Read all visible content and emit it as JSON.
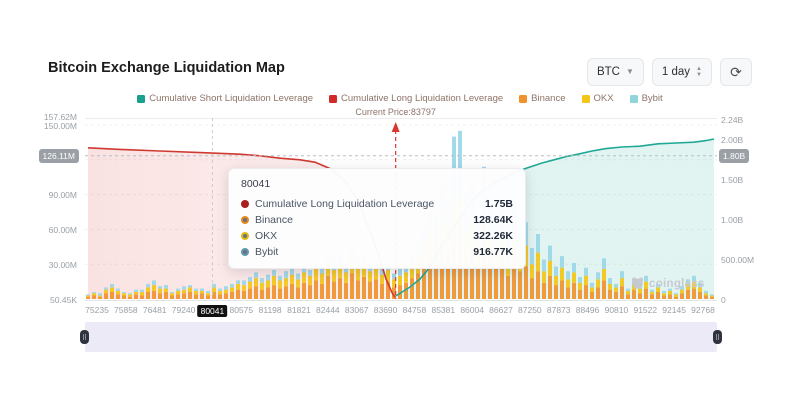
{
  "header": {
    "title": "Bitcoin Exchange Liquidation Map"
  },
  "controls": {
    "symbol_select": {
      "value": "BTC"
    },
    "period_select": {
      "value": "1 day"
    },
    "refresh_icon": "refresh-icon"
  },
  "legend": {
    "items": [
      {
        "label": "Cumulative Short Liquidation Leverage",
        "color": "#17a08e"
      },
      {
        "label": "Cumulative Long Liquidation Leverage",
        "color": "#d02a2a"
      },
      {
        "label": "Binance",
        "color": "#f0922e"
      },
      {
        "label": "OKX",
        "color": "#f3c517"
      },
      {
        "label": "Bybit",
        "color": "#8fd6dc"
      }
    ]
  },
  "current_price": {
    "label": "Current Price:83797",
    "value": 83797,
    "tick_pos": 10.35,
    "line_color": "#d4382e"
  },
  "chart_data": {
    "type": "mixed: stacked bar + cumulative area lines",
    "x_axis": {
      "tick_labels": [
        "75235",
        "75858",
        "76481",
        "79240",
        "80041",
        "80575",
        "81198",
        "81821",
        "82444",
        "83067",
        "83690",
        "84758",
        "85381",
        "86004",
        "86627",
        "87250",
        "87873",
        "88496",
        "90810",
        "91522",
        "92145",
        "92768"
      ],
      "highlighted_tick_index": 4,
      "highlighted_tick": "80041"
    },
    "left_axis": {
      "unit": "M",
      "ticks": [
        {
          "label": "157.62M",
          "v": 157.62,
          "grid": false
        },
        {
          "label": "150.00M",
          "v": 150,
          "grid": true
        },
        {
          "label": "120.00M",
          "v": 120,
          "grid": true
        },
        {
          "label": "90.00M",
          "v": 90,
          "grid": true
        },
        {
          "label": "60.00M",
          "v": 60,
          "grid": true
        },
        {
          "label": "30.00M",
          "v": 30,
          "grid": true
        },
        {
          "label": "50.45K",
          "v": 0,
          "grid": false
        }
      ],
      "pointer_badge": "126.11M"
    },
    "right_axis": {
      "unit": "B",
      "ticks": [
        {
          "label": "2.24B",
          "v": 2.24
        },
        {
          "label": "2.00B",
          "v": 2.0
        },
        {
          "label": "1.50B",
          "v": 1.5
        },
        {
          "label": "1.00B",
          "v": 1.0
        },
        {
          "label": "500.00M",
          "v": 0.5
        },
        {
          "label": "0",
          "v": 0
        }
      ],
      "pointer_badge": "1.80B",
      "pointer_value_b": 1.79
    },
    "series": {
      "cumulative_long": {
        "name": "Cumulative Long Liquidation Leverage",
        "color": "#cf3a30",
        "unit": "B",
        "area_fill": [
          "rgba(226,74,74,0.16)",
          "rgba(226,74,74,0.08)"
        ],
        "points": [
          [
            3,
            1.89
          ],
          [
            35,
            1.87
          ],
          [
            75,
            1.85
          ],
          [
            115,
            1.83
          ],
          [
            155,
            1.81
          ],
          [
            175,
            1.79
          ],
          [
            195,
            1.76
          ],
          [
            215,
            1.74
          ],
          [
            230,
            1.71
          ],
          [
            245,
            1.63
          ],
          [
            260,
            1.48
          ],
          [
            273,
            1.23
          ],
          [
            283,
            0.91
          ],
          [
            293,
            0.58
          ],
          [
            301,
            0.25
          ],
          [
            307,
            0.08
          ],
          [
            310,
            0.02
          ]
        ]
      },
      "cumulative_short": {
        "name": "Cumulative Short Liquidation Leverage",
        "color": "#1fa895",
        "unit": "B",
        "area_fill": [
          "rgba(32,168,149,0.13)",
          "rgba(32,168,149,0.13)"
        ],
        "points": [
          [
            311,
            0.04
          ],
          [
            325,
            0.15
          ],
          [
            335,
            0.25
          ],
          [
            345,
            0.4
          ],
          [
            353,
            0.58
          ],
          [
            361,
            0.75
          ],
          [
            369,
            0.9
          ],
          [
            377,
            1.05
          ],
          [
            385,
            1.2
          ],
          [
            393,
            1.3
          ],
          [
            403,
            1.4
          ],
          [
            413,
            1.48
          ],
          [
            423,
            1.54
          ],
          [
            433,
            1.6
          ],
          [
            445,
            1.65
          ],
          [
            457,
            1.7
          ],
          [
            469,
            1.74
          ],
          [
            481,
            1.78
          ],
          [
            493,
            1.81
          ],
          [
            507,
            1.85
          ],
          [
            521,
            1.88
          ],
          [
            537,
            1.9
          ],
          [
            555,
            1.91
          ],
          [
            573,
            1.94
          ],
          [
            591,
            1.95
          ],
          [
            609,
            1.96
          ],
          [
            621,
            1.98
          ],
          [
            629,
            2.0
          ]
        ]
      },
      "bars": {
        "names": [
          "Binance",
          "OKX",
          "Bybit"
        ],
        "colors": [
          "#f0922e",
          "#f3c517",
          "#9ad7e8"
        ],
        "unit": "M",
        "stacks": [
          [
            2,
            1,
            1
          ],
          [
            3,
            2,
            1
          ],
          [
            2,
            1,
            2
          ],
          [
            5,
            3,
            2
          ],
          [
            6,
            4,
            3
          ],
          [
            4,
            3,
            2
          ],
          [
            3,
            2,
            1
          ],
          [
            2,
            2,
            1
          ],
          [
            4,
            2,
            2
          ],
          [
            3,
            3,
            2
          ],
          [
            6,
            4,
            3
          ],
          [
            7,
            5,
            4
          ],
          [
            5,
            4,
            2
          ],
          [
            6,
            3,
            3
          ],
          [
            3,
            2,
            1
          ],
          [
            4,
            3,
            2
          ],
          [
            5,
            3,
            3
          ],
          [
            6,
            4,
            2
          ],
          [
            4,
            3,
            2
          ],
          [
            5,
            2,
            2
          ],
          [
            3,
            2,
            2
          ],
          [
            6,
            4,
            3
          ],
          [
            4,
            3,
            2
          ],
          [
            5,
            3,
            3
          ],
          [
            6,
            4,
            3
          ],
          [
            8,
            5,
            3
          ],
          [
            7,
            5,
            4
          ],
          [
            9,
            6,
            4
          ],
          [
            11,
            7,
            5
          ],
          [
            8,
            6,
            4
          ],
          [
            10,
            6,
            5
          ],
          [
            12,
            8,
            5
          ],
          [
            9,
            7,
            4
          ],
          [
            11,
            7,
            6
          ],
          [
            13,
            8,
            6
          ],
          [
            10,
            7,
            5
          ],
          [
            14,
            9,
            6
          ],
          [
            12,
            8,
            5
          ],
          [
            16,
            10,
            7
          ],
          [
            13,
            9,
            6
          ],
          [
            20,
            12,
            8
          ],
          [
            15,
            10,
            7
          ],
          [
            18,
            11,
            7
          ],
          [
            14,
            9,
            6
          ],
          [
            22,
            13,
            9
          ],
          [
            16,
            10,
            8
          ],
          [
            19,
            12,
            8
          ],
          [
            15,
            9,
            7
          ],
          [
            17,
            11,
            7
          ],
          [
            13,
            8,
            6
          ],
          [
            15,
            10,
            7
          ],
          [
            10,
            7,
            5
          ],
          [
            12,
            8,
            6
          ],
          [
            14,
            9,
            7
          ],
          [
            18,
            12,
            10
          ],
          [
            22,
            15,
            13
          ],
          [
            28,
            18,
            16
          ],
          [
            34,
            22,
            20
          ],
          [
            30,
            20,
            24
          ],
          [
            40,
            26,
            30
          ],
          [
            36,
            24,
            28
          ],
          [
            48,
            34,
            58
          ],
          [
            50,
            36,
            59
          ],
          [
            34,
            24,
            28
          ],
          [
            40,
            28,
            36
          ],
          [
            28,
            20,
            22
          ],
          [
            42,
            28,
            44
          ],
          [
            34,
            22,
            28
          ],
          [
            26,
            18,
            20
          ],
          [
            36,
            24,
            26
          ],
          [
            20,
            14,
            16
          ],
          [
            32,
            20,
            26
          ],
          [
            24,
            16,
            18
          ],
          [
            28,
            18,
            20
          ],
          [
            18,
            12,
            14
          ],
          [
            24,
            16,
            16
          ],
          [
            14,
            10,
            10
          ],
          [
            20,
            13,
            13
          ],
          [
            12,
            8,
            8
          ],
          [
            16,
            11,
            10
          ],
          [
            10,
            7,
            7
          ],
          [
            14,
            9,
            8
          ],
          [
            8,
            6,
            5
          ],
          [
            12,
            8,
            7
          ],
          [
            6,
            4,
            4
          ],
          [
            10,
            7,
            6
          ],
          [
            16,
            10,
            9
          ],
          [
            8,
            5,
            5
          ],
          [
            6,
            4,
            3
          ],
          [
            11,
            7,
            6
          ],
          [
            4,
            3,
            2
          ],
          [
            8,
            5,
            4
          ],
          [
            5,
            4,
            3
          ],
          [
            9,
            6,
            5
          ],
          [
            4,
            2,
            2
          ],
          [
            6,
            4,
            3
          ],
          [
            3,
            2,
            2
          ],
          [
            4,
            3,
            2
          ],
          [
            2,
            2,
            1
          ],
          [
            5,
            3,
            3
          ],
          [
            8,
            5,
            4
          ],
          [
            9,
            6,
            5
          ],
          [
            6,
            4,
            4
          ],
          [
            3,
            2,
            2
          ],
          [
            2,
            1,
            1
          ]
        ]
      }
    }
  },
  "tooltip": {
    "title": "80041",
    "rows": [
      {
        "label": "Cumulative Long Liquidation Leverage",
        "value": "1.75B",
        "color": "#a81f1f",
        "ring": false
      },
      {
        "label": "Binance",
        "value": "128.64K",
        "color": "#e8871a",
        "ring": true
      },
      {
        "label": "OKX",
        "value": "322.26K",
        "color": "#e3b90f",
        "ring": true
      },
      {
        "label": "Bybit",
        "value": "916.77K",
        "color": "#5e99ad",
        "ring": true
      }
    ]
  },
  "watermark": {
    "text": "coinglass",
    "icon": "coinglass-bear-icon"
  }
}
